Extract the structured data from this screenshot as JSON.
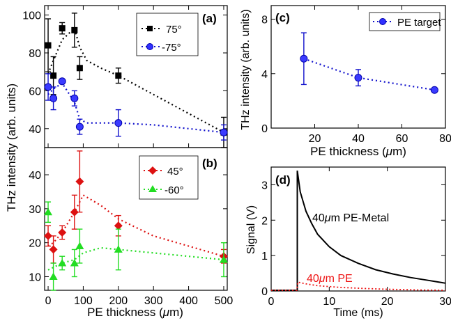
{
  "chart_data": [
    {
      "id": "a",
      "panel_label": "(a)",
      "type": "scatter",
      "xlim": [
        -10,
        510
      ],
      "ylim": [
        30,
        105
      ],
      "yticks": [
        40,
        60,
        80,
        100
      ],
      "xticks": [
        0,
        100,
        200,
        300,
        400,
        500
      ],
      "xtick_labels": [
        "",
        "",
        "",
        "",
        "",
        ""
      ],
      "ytick_labels": [
        "40",
        "60",
        "80",
        "100"
      ],
      "legend_position": "top-right",
      "series": [
        {
          "name": "75°",
          "color": "#000000",
          "marker": "square",
          "points": [
            {
              "x": 0,
              "y": 84,
              "err": 14
            },
            {
              "x": 15,
              "y": 68,
              "err": 10
            },
            {
              "x": 40,
              "y": 93,
              "err": 3
            },
            {
              "x": 75,
              "y": 92,
              "err": 9
            },
            {
              "x": 90,
              "y": 72,
              "err": 6
            },
            {
              "x": 200,
              "y": 68,
              "err": 4
            },
            {
              "x": 500,
              "y": 38,
              "err": 8
            }
          ],
          "trend": [
            [
              0,
              69
            ],
            [
              15,
              76
            ],
            [
              40,
              87
            ],
            [
              75,
              93
            ],
            [
              90,
              83
            ],
            [
              110,
              76
            ],
            [
              150,
              72
            ],
            [
              200,
              68
            ],
            [
              300,
              58
            ],
            [
              400,
              48
            ],
            [
              500,
              38
            ]
          ]
        },
        {
          "name": "-75°",
          "color": "#1010cc",
          "marker": "circle",
          "points": [
            {
              "x": 0,
              "y": 62,
              "err": 7
            },
            {
              "x": 15,
              "y": 56,
              "err": 6
            },
            {
              "x": 40,
              "y": 65,
              "err": 1
            },
            {
              "x": 75,
              "y": 56,
              "err": 4
            },
            {
              "x": 90,
              "y": 41,
              "err": 4
            },
            {
              "x": 200,
              "y": 43,
              "err": 7
            },
            {
              "x": 500,
              "y": 38,
              "err": 4
            }
          ],
          "trend": [
            [
              0,
              58
            ],
            [
              15,
              61
            ],
            [
              40,
              64
            ],
            [
              75,
              54
            ],
            [
              90,
              45
            ],
            [
              110,
              43
            ],
            [
              200,
              43
            ],
            [
              300,
              42
            ],
            [
              400,
              40
            ],
            [
              500,
              38
            ]
          ]
        }
      ]
    },
    {
      "id": "b",
      "panel_label": "(b)",
      "type": "scatter",
      "xlabel": "PE thickness (",
      "xlabel_mu": "μ",
      "xlabel_tail": "m)",
      "xlim": [
        -10,
        510
      ],
      "ylim": [
        6,
        48
      ],
      "yticks": [
        10,
        20,
        30,
        40
      ],
      "xticks": [
        0,
        100,
        200,
        300,
        400,
        500
      ],
      "xtick_labels": [
        "0",
        "100",
        "200",
        "300",
        "400",
        "500"
      ],
      "ytick_labels": [
        "10",
        "20",
        "30",
        "40"
      ],
      "legend_position": "top-right",
      "series": [
        {
          "name": "45°",
          "color": "#dd1111",
          "marker": "diamond",
          "points": [
            {
              "x": 0,
              "y": 22,
              "err": 3
            },
            {
              "x": 15,
              "y": 18,
              "err": 4
            },
            {
              "x": 40,
              "y": 23,
              "err": 2
            },
            {
              "x": 75,
              "y": 29,
              "err": 5
            },
            {
              "x": 90,
              "y": 38,
              "err": 9
            },
            {
              "x": 200,
              "y": 25,
              "err": 3
            },
            {
              "x": 500,
              "y": 16,
              "err": 2
            }
          ],
          "trend": [
            [
              0,
              19
            ],
            [
              15,
              20
            ],
            [
              40,
              23
            ],
            [
              75,
              29
            ],
            [
              100,
              34
            ],
            [
              150,
              31
            ],
            [
              200,
              27
            ],
            [
              300,
              22
            ],
            [
              400,
              19
            ],
            [
              500,
              16
            ]
          ]
        },
        {
          "name": "-60°",
          "color": "#22dd22",
          "marker": "triangle",
          "points": [
            {
              "x": 0,
              "y": 29,
              "err": 3
            },
            {
              "x": 15,
              "y": 10,
              "err": 4
            },
            {
              "x": 40,
              "y": 14,
              "err": 2
            },
            {
              "x": 75,
              "y": 14,
              "err": 4
            },
            {
              "x": 90,
              "y": 19,
              "err": 5
            },
            {
              "x": 200,
              "y": 18,
              "err": 6
            },
            {
              "x": 500,
              "y": 15,
              "err": 5
            }
          ],
          "trend": [
            [
              0,
              12
            ],
            [
              40,
              14
            ],
            [
              75,
              15
            ],
            [
              100,
              17
            ],
            [
              150,
              18.5
            ],
            [
              200,
              18
            ],
            [
              300,
              17
            ],
            [
              400,
              16
            ],
            [
              500,
              15
            ]
          ]
        }
      ]
    },
    {
      "id": "c",
      "panel_label": "(c)",
      "type": "scatter",
      "xlabel": "PE thickness (",
      "xlabel_mu": "μ",
      "xlabel_tail": "m)",
      "ylabel": "THz intensity (arb. units)",
      "xlim": [
        0,
        80
      ],
      "ylim": [
        0,
        9
      ],
      "yticks": [
        0,
        4,
        8
      ],
      "xticks": [
        20,
        40,
        60,
        80
      ],
      "xtick_labels": [
        "20",
        "40",
        "60",
        "80"
      ],
      "ytick_labels": [
        "0",
        "4",
        "8"
      ],
      "legend_position": "top-right",
      "series": [
        {
          "name": "PE target",
          "color": "#1010cc",
          "marker": "circle",
          "points": [
            {
              "x": 15,
              "y": 5.1,
              "err": 1.9
            },
            {
              "x": 40,
              "y": 3.7,
              "err": 0.6
            },
            {
              "x": 75,
              "y": 2.8,
              "err": 0.1
            }
          ],
          "trend": [
            [
              15,
              5.1
            ],
            [
              40,
              3.7
            ],
            [
              75,
              2.8
            ]
          ]
        }
      ]
    },
    {
      "id": "d",
      "panel_label": "(d)",
      "type": "line",
      "xlabel": "Time (ms)",
      "ylabel": "Signal (V)",
      "xlim": [
        0,
        30
      ],
      "ylim": [
        0,
        3.5
      ],
      "yticks": [
        0,
        1,
        2,
        3
      ],
      "xticks": [
        0,
        10,
        20,
        30
      ],
      "xtick_labels": [
        "0",
        "10",
        "20",
        "30"
      ],
      "ytick_labels": [
        "0",
        "1",
        "2",
        "3"
      ],
      "series": [
        {
          "name_pre": "40",
          "name_mu": "μ",
          "name_post": "m PE-Metal",
          "color": "#000000",
          "style": "solid",
          "pulse_at": 4.5,
          "baseline": 0.02,
          "points": [
            [
              4.5,
              3.4
            ],
            [
              5,
              2.8
            ],
            [
              6,
              2.25
            ],
            [
              7,
              1.9
            ],
            [
              8,
              1.6
            ],
            [
              10,
              1.25
            ],
            [
              12,
              1.0
            ],
            [
              15,
              0.78
            ],
            [
              18,
              0.6
            ],
            [
              21,
              0.48
            ],
            [
              24,
              0.38
            ],
            [
              27,
              0.3
            ],
            [
              30,
              0.22
            ]
          ]
        },
        {
          "name_pre": "40",
          "name_mu": "μ",
          "name_post": "m PE",
          "color": "#ee1111",
          "style": "dotted",
          "baseline": 0.02,
          "points": [
            [
              0,
              0.02
            ],
            [
              4.4,
              0.02
            ],
            [
              4.6,
              0.25
            ],
            [
              6,
              0.2
            ],
            [
              8,
              0.15
            ],
            [
              12,
              0.1
            ],
            [
              16,
              0.07
            ],
            [
              20,
              0.05
            ],
            [
              25,
              0.03
            ],
            [
              30,
              0.02
            ]
          ]
        }
      ]
    }
  ],
  "shared": {
    "ylabel_ab": "THz intensity (arb. units)"
  }
}
